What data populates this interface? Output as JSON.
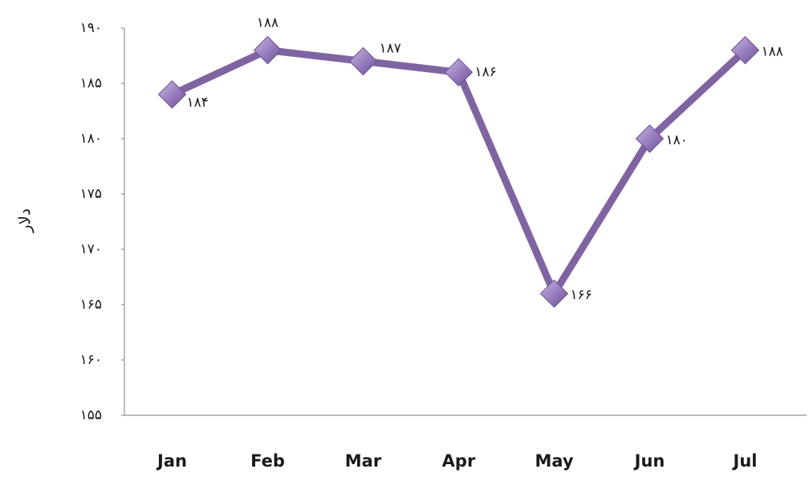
{
  "chart_data": {
    "type": "line",
    "y_label": "دلار",
    "categories": [
      "Jan",
      "Feb",
      "Mar",
      "Apr",
      "May",
      "Jun",
      "Jul"
    ],
    "values": [
      184,
      188,
      187,
      186,
      166,
      180,
      188
    ],
    "value_labels": [
      "۱۸۴",
      "۱۸۸",
      "۱۸۷",
      "۱۸۶",
      "۱۶۶",
      "۱۸۰",
      "۱۸۸"
    ],
    "color": "#8064a2",
    "ylim": [
      155,
      190
    ],
    "yticks": [
      {
        "value": 155,
        "label": "۱۵۵"
      },
      {
        "value": 160,
        "label": "۱۶۰"
      },
      {
        "value": 165,
        "label": "۱۶۵"
      },
      {
        "value": 170,
        "label": "۱۷۰"
      },
      {
        "value": 175,
        "label": "۱۷۵"
      },
      {
        "value": 180,
        "label": "۱۸۰"
      },
      {
        "value": 185,
        "label": "۱۸۵"
      },
      {
        "value": 190,
        "label": "۱۹۰"
      }
    ],
    "grid": false
  }
}
